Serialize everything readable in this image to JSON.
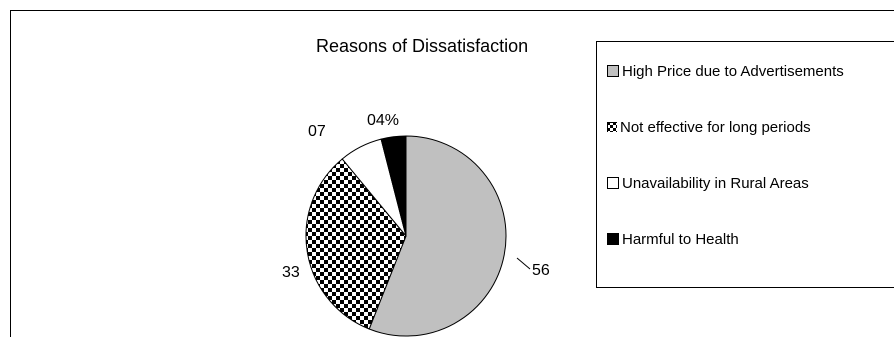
{
  "chart_data": {
    "type": "pie",
    "title": "Reasons of Dissatisfaction",
    "categories": [
      "High Price due to Advertisements",
      "Not effective for long periods",
      "Unavailability in Rural Areas",
      "Harmful to Health"
    ],
    "values": [
      56,
      33,
      7,
      4
    ],
    "data_labels": [
      "56",
      "33",
      "07",
      "04%"
    ],
    "legend": "right",
    "colors": [
      "#c0c0c0",
      "checkered-black-white",
      "#ffffff",
      "#000000"
    ]
  }
}
